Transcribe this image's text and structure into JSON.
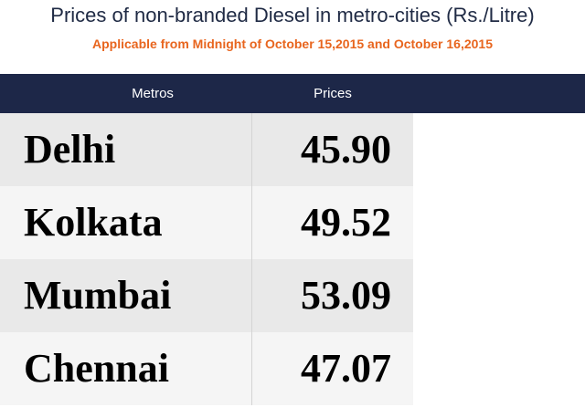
{
  "title": "Prices of non-branded Diesel in metro-cities (Rs./Litre)",
  "subtitle": "Applicable from Midnight of October 15,2015 and October 16,2015",
  "table": {
    "headers": {
      "metro": "Metros",
      "price": "Prices"
    },
    "rows": [
      {
        "city": "Delhi",
        "price": "45.90"
      },
      {
        "city": "Kolkata",
        "price": "49.52"
      },
      {
        "city": "Mumbai",
        "price": "53.09"
      },
      {
        "city": "Chennai",
        "price": "47.07"
      }
    ]
  },
  "colors": {
    "header_bg": "#1d2748",
    "title": "#1f2a44",
    "subtitle": "#e8651e"
  }
}
